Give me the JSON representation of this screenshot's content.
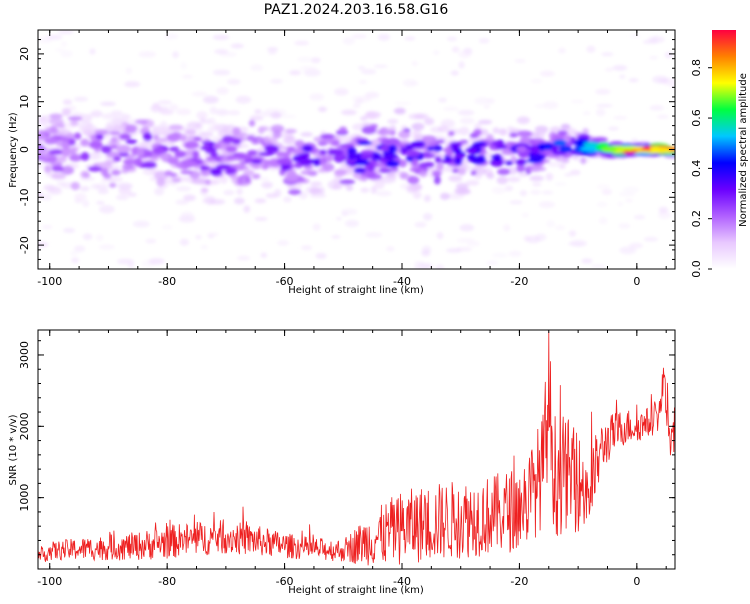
{
  "title": "PAZ1.2024.203.16.58.G16",
  "chart_data": [
    {
      "type": "heatmap",
      "title": "PAZ1.2024.203.16.58.G16",
      "xlabel": "Height of straight line (km)",
      "ylabel": "Frequency (Hz)",
      "xlim": [
        -102,
        6.5
      ],
      "ylim": [
        -25,
        25
      ],
      "x_ticks": [
        -100,
        -80,
        -60,
        -40,
        -20,
        0
      ],
      "y_ticks": [
        -20,
        -10,
        0,
        10,
        20
      ],
      "colorbar": {
        "label": "Normalized spectral amplitude",
        "range": [
          0,
          0.95
        ],
        "ticks": [
          0.0,
          0.2,
          0.4,
          0.6,
          0.8
        ],
        "colormap": [
          "#ffffff",
          "#e8c8ff",
          "#b060ff",
          "#6a00ff",
          "#0000ff",
          "#00c8ff",
          "#00ff40",
          "#ffff00",
          "#ff8000",
          "#ff0040"
        ]
      },
      "grid": false,
      "ridge": [
        {
          "height": -100,
          "freq_center": 0,
          "amplitude": 0.22,
          "spread_hz": 9
        },
        {
          "height": -80,
          "freq_center": -1,
          "amplitude": 0.25,
          "spread_hz": 9
        },
        {
          "height": -60,
          "freq_center": -2,
          "amplitude": 0.28,
          "spread_hz": 8
        },
        {
          "height": -40,
          "freq_center": -1,
          "amplitude": 0.35,
          "spread_hz": 7
        },
        {
          "height": -20,
          "freq_center": -1,
          "amplitude": 0.3,
          "spread_hz": 6
        },
        {
          "height": -10,
          "freq_center": 1,
          "amplitude": 0.45,
          "spread_hz": 3
        },
        {
          "height": -5,
          "freq_center": 0,
          "amplitude": 0.8,
          "spread_hz": 1.5
        },
        {
          "height": 0,
          "freq_center": 0,
          "amplitude": 0.85,
          "spread_hz": 1
        },
        {
          "height": 6,
          "freq_center": 0,
          "amplitude": 0.9,
          "spread_hz": 1
        }
      ]
    },
    {
      "type": "line",
      "xlabel": "Height of straight line (km)",
      "ylabel": "SNR (10 * v/v)",
      "xlim": [
        -102,
        6.5
      ],
      "ylim": [
        0,
        3350
      ],
      "x_ticks": [
        -100,
        -80,
        -60,
        -40,
        -20,
        0
      ],
      "y_ticks": [
        1000,
        2000,
        3000
      ],
      "line_color": "#ee2020",
      "grid": false,
      "series": [
        {
          "x": [
            -102,
            -100,
            -95,
            -90,
            -85,
            -80,
            -75,
            -70,
            -65,
            -60,
            -55,
            -50,
            -48,
            -45,
            -42,
            -40,
            -35,
            -30,
            -25,
            -20,
            -18,
            -16,
            -15,
            -14,
            -12,
            -10,
            -8,
            -6,
            -4,
            -2,
            0,
            2,
            4,
            4.7,
            5.5,
            6.5
          ],
          "values": [
            150,
            250,
            280,
            300,
            320,
            380,
            420,
            450,
            400,
            330,
            280,
            260,
            330,
            420,
            520,
            580,
            650,
            700,
            750,
            850,
            1050,
            1400,
            2400,
            1300,
            1350,
            1200,
            1100,
            1700,
            1900,
            2000,
            2000,
            2050,
            2200,
            2800,
            1700,
            2000
          ],
          "noise": [
            90,
            130,
            160,
            180,
            200,
            240,
            240,
            240,
            220,
            180,
            160,
            160,
            260,
            380,
            480,
            520,
            550,
            560,
            560,
            600,
            700,
            800,
            1000,
            900,
            800,
            700,
            650,
            350,
            300,
            260,
            220,
            220,
            250,
            300,
            300,
            320
          ]
        }
      ]
    }
  ]
}
